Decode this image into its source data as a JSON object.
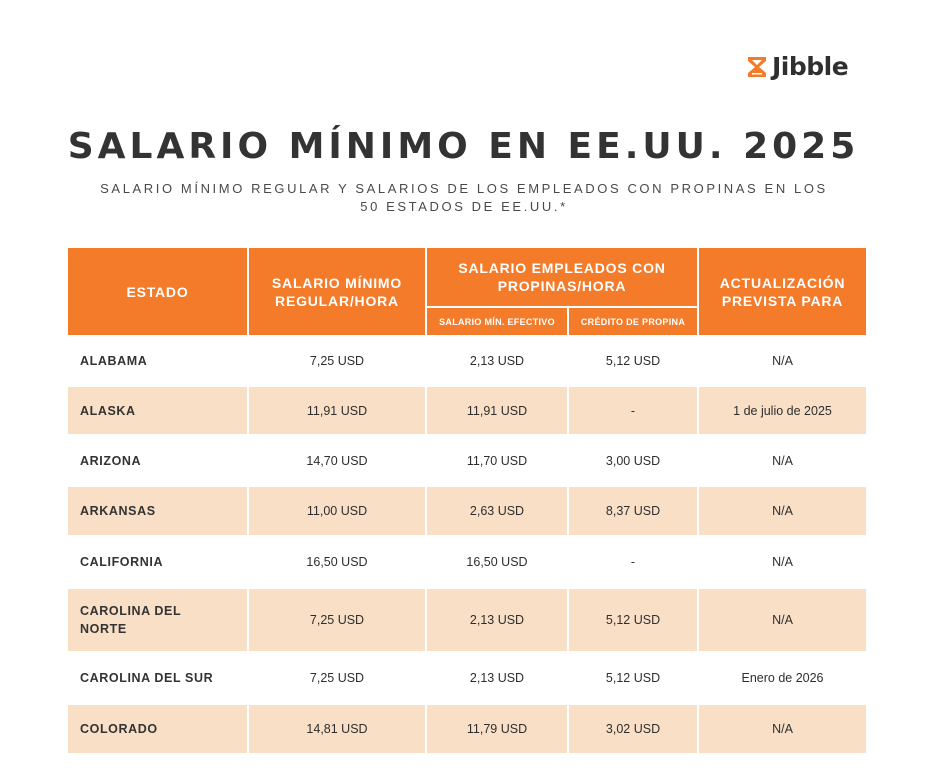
{
  "brand": {
    "name": "Jibble",
    "accent": "#f47b2a"
  },
  "title": "SALARIO MÍNIMO EN EE.UU. 2025",
  "subtitle": "SALARIO MÍNIMO REGULAR Y SALARIOS DE LOS EMPLEADOS CON PROPINAS EN LOS 50 ESTADOS DE EE.UU.*",
  "table": {
    "headers": {
      "estado": "ESTADO",
      "regular": "SALARIO MÍNIMO REGULAR/HORA",
      "propinas": "SALARIO EMPLEADOS CON PROPINAS/HORA",
      "efectivo": "SALARIO MÍN. EFECTIVO",
      "credito": "CRÉDITO DE PROPINA",
      "actualizacion": "ACTUALIZACIÓN PREVISTA PARA"
    },
    "rows": [
      {
        "estado": "ALABAMA",
        "regular": "7,25 USD",
        "efectivo": "2,13 USD",
        "credito": "5,12 USD",
        "actualizacion": "N/A",
        "height": 50
      },
      {
        "estado": "ALASKA",
        "regular": "11,91 USD",
        "efectivo": "11,91 USD",
        "credito": "-",
        "actualizacion": "1 de julio de 2025",
        "height": 49
      },
      {
        "estado": "ARIZONA",
        "regular": "14,70 USD",
        "efectivo": "11,70 USD",
        "credito": "3,00 USD",
        "actualizacion": "N/A",
        "height": 51
      },
      {
        "estado": "ARKANSAS",
        "regular": "11,00 USD",
        "efectivo": "2,63 USD",
        "credito": "8,37 USD",
        "actualizacion": "N/A",
        "height": 50
      },
      {
        "estado": "CALIFORNIA",
        "regular": "16,50 USD",
        "efectivo": "16,50 USD",
        "credito": "-",
        "actualizacion": "N/A",
        "height": 52
      },
      {
        "estado": "CAROLINA DEL NORTE",
        "regular": "7,25 USD",
        "efectivo": "2,13 USD",
        "credito": "5,12 USD",
        "actualizacion": "N/A",
        "height": 64
      },
      {
        "estado": "CAROLINA DEL SUR",
        "regular": "7,25 USD",
        "efectivo": "2,13 USD",
        "credito": "5,12 USD",
        "actualizacion": "Enero de 2026",
        "height": 52
      },
      {
        "estado": "COLORADO",
        "regular": "14,81 USD",
        "efectivo": "11,79 USD",
        "credito": "3,02 USD",
        "actualizacion": "N/A",
        "height": 50
      }
    ]
  }
}
